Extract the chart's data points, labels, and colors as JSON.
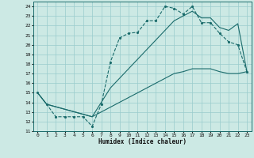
{
  "xlabel": "Humidex (Indice chaleur)",
  "xlim": [
    -0.5,
    23.5
  ],
  "ylim": [
    11,
    24.5
  ],
  "yticks": [
    11,
    12,
    13,
    14,
    15,
    16,
    17,
    18,
    19,
    20,
    21,
    22,
    23,
    24
  ],
  "xticks": [
    0,
    1,
    2,
    3,
    4,
    5,
    6,
    7,
    8,
    9,
    10,
    11,
    12,
    13,
    14,
    15,
    16,
    17,
    18,
    19,
    20,
    21,
    22,
    23
  ],
  "bg_color": "#cce9e4",
  "grid_color": "#99cccc",
  "line_color": "#1a6b6b",
  "line1_x": [
    0,
    1,
    2,
    3,
    4,
    5,
    6,
    7,
    8,
    9,
    10,
    11,
    12,
    13,
    14,
    15,
    16,
    17,
    18,
    19,
    20,
    21,
    22,
    23
  ],
  "line1_y": [
    15,
    13.8,
    12.5,
    12.5,
    12.5,
    12.5,
    11.5,
    13.8,
    18.2,
    20.7,
    21.2,
    21.3,
    22.5,
    22.5,
    24.0,
    23.8,
    23.2,
    24.0,
    22.3,
    22.3,
    21.2,
    20.3,
    20.0,
    17.2
  ],
  "line2_x": [
    0,
    1,
    6,
    7,
    8,
    9,
    10,
    11,
    12,
    13,
    14,
    15,
    16,
    17,
    18,
    19,
    20,
    21,
    22,
    23
  ],
  "line2_y": [
    15,
    13.8,
    12.5,
    14.0,
    15.5,
    16.5,
    17.5,
    18.5,
    19.5,
    20.5,
    21.5,
    22.5,
    23.0,
    23.5,
    22.8,
    22.8,
    21.8,
    21.5,
    22.2,
    17.2
  ],
  "line3_x": [
    0,
    1,
    6,
    7,
    8,
    9,
    10,
    11,
    12,
    13,
    14,
    15,
    16,
    17,
    18,
    19,
    20,
    21,
    22,
    23
  ],
  "line3_y": [
    15,
    13.8,
    12.5,
    13.0,
    13.5,
    14.0,
    14.5,
    15.0,
    15.5,
    16.0,
    16.5,
    17.0,
    17.2,
    17.5,
    17.5,
    17.5,
    17.2,
    17.0,
    17.0,
    17.2
  ]
}
